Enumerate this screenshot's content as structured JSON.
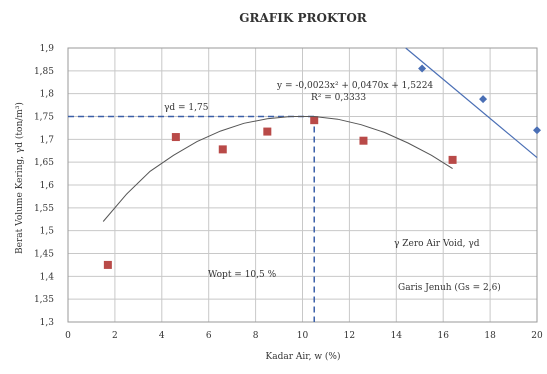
{
  "chart_data": {
    "type": "scatter",
    "title": "GRAFIK PROKTOR",
    "xlabel": "Kadar Air, w (%)",
    "ylabel": "Berat Volume Kering, γd (ton/m³)",
    "xlim": [
      0,
      20
    ],
    "ylim": [
      1.3,
      1.9
    ],
    "x_ticks": [
      0,
      2,
      4,
      6,
      8,
      10,
      12,
      14,
      16,
      18,
      20
    ],
    "y_ticks": [
      1.3,
      1.35,
      1.4,
      1.45,
      1.5,
      1.55,
      1.6,
      1.65,
      1.7,
      1.75,
      1.8,
      1.85,
      1.9
    ],
    "x_tick_labels": [
      "0",
      "2",
      "4",
      "6",
      "8",
      "10",
      "12",
      "14",
      "16",
      "18",
      "20"
    ],
    "y_tick_labels": [
      "1,3",
      "1,35",
      "1,4",
      "1,45",
      "1,5",
      "1,55",
      "1,6",
      "1,65",
      "1,7",
      "1,75",
      "1,8",
      "1,85",
      "1,9"
    ],
    "grid": true,
    "series": [
      {
        "name": "",
        "kind": "points",
        "marker": "square",
        "color": "#b94a48",
        "x": [
          1.7,
          4.6,
          6.6,
          8.5,
          10.5,
          12.6,
          16.4
        ],
        "y": [
          1.425,
          1.705,
          1.678,
          1.717,
          1.742,
          1.697,
          1.655
        ]
      },
      {
        "name": "",
        "kind": "fit-curve",
        "color": "#555555",
        "equation": "y = -0,0023x² + 0,0470x + 1,5224",
        "r2": "R² = 0,3333",
        "x": [
          1.5,
          2.5,
          3.5,
          4.5,
          5.5,
          6.5,
          7.5,
          8.5,
          9.5,
          10.5,
          11.5,
          12.5,
          13.5,
          14.5,
          15.5,
          16.4
        ],
        "y": [
          1.52,
          1.58,
          1.63,
          1.665,
          1.695,
          1.718,
          1.735,
          1.745,
          1.75,
          1.75,
          1.744,
          1.732,
          1.715,
          1.692,
          1.665,
          1.636
        ]
      },
      {
        "name": "",
        "kind": "points",
        "marker": "diamond",
        "color": "#4a6fb5",
        "x": [
          15.1,
          17.7,
          20.0
        ],
        "y": [
          1.855,
          1.788,
          1.72
        ]
      },
      {
        "name": "",
        "kind": "line",
        "color": "#4a6fb5",
        "x": [
          14.4,
          20.0
        ],
        "y": [
          1.9,
          1.66
        ]
      }
    ],
    "optimum": {
      "x": 10.5,
      "y": 1.75
    },
    "annotations": {
      "equation": "y = -0,0023x² + 0,0470x + 1,5224",
      "r2": "R² = 0,3333",
      "max_density": "γd = 1,75",
      "optimum_water": "Wopt = 10,5 %",
      "legend_zav": "γ Zero Air Void, γd",
      "legend_curve": "Garis Jenuh (Gs = 2,6)"
    }
  }
}
